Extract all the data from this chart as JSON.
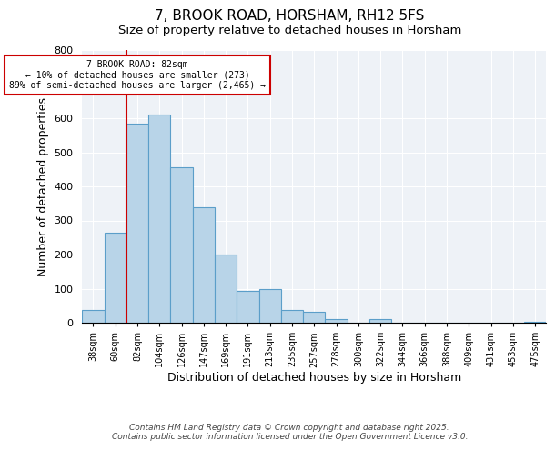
{
  "title": "7, BROOK ROAD, HORSHAM, RH12 5FS",
  "subtitle": "Size of property relative to detached houses in Horsham",
  "xlabel": "Distribution of detached houses by size in Horsham",
  "ylabel": "Number of detached properties",
  "categories": [
    "38sqm",
    "60sqm",
    "82sqm",
    "104sqm",
    "126sqm",
    "147sqm",
    "169sqm",
    "191sqm",
    "213sqm",
    "235sqm",
    "257sqm",
    "278sqm",
    "300sqm",
    "322sqm",
    "344sqm",
    "366sqm",
    "388sqm",
    "409sqm",
    "431sqm",
    "453sqm",
    "475sqm"
  ],
  "values": [
    38,
    265,
    585,
    610,
    455,
    338,
    200,
    93,
    100,
    37,
    32,
    12,
    0,
    12,
    0,
    0,
    0,
    0,
    0,
    0,
    3
  ],
  "bar_color": "#b8d4e8",
  "bar_edge_color": "#5b9ec9",
  "vline_index": 2,
  "vline_color": "#cc0000",
  "annotation_title": "7 BROOK ROAD: 82sqm",
  "annotation_line1": "← 10% of detached houses are smaller (273)",
  "annotation_line2": "89% of semi-detached houses are larger (2,465) →",
  "annotation_box_color": "#cc0000",
  "ylim": [
    0,
    800
  ],
  "yticks": [
    0,
    100,
    200,
    300,
    400,
    500,
    600,
    700,
    800
  ],
  "background_color": "#eef2f7",
  "footer1": "Contains HM Land Registry data © Crown copyright and database right 2025.",
  "footer2": "Contains public sector information licensed under the Open Government Licence v3.0.",
  "title_fontsize": 11,
  "subtitle_fontsize": 9.5
}
